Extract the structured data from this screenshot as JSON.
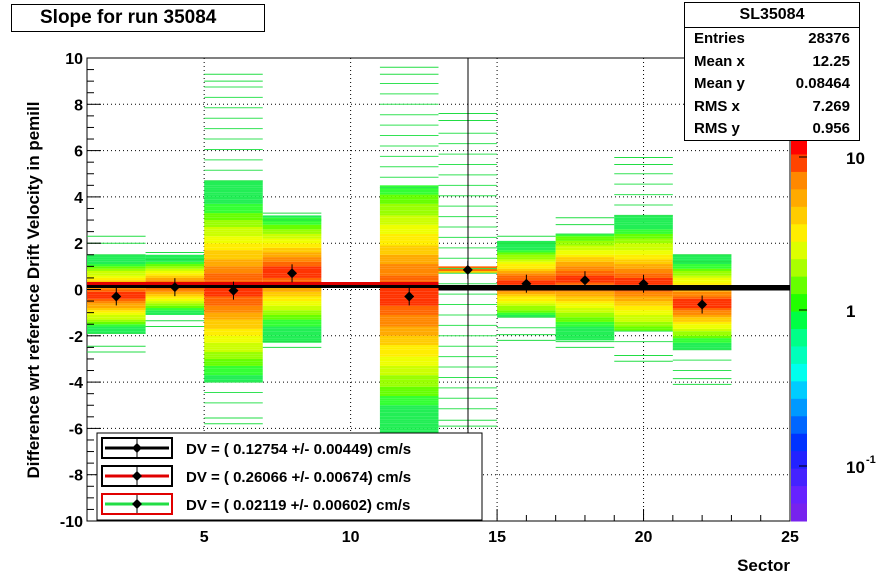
{
  "title": "Slope for run 35084",
  "stats_box": {
    "name": "SL35084",
    "rows": [
      {
        "key": "Entries",
        "value": "28376"
      },
      {
        "key": "Mean x",
        "value": "12.25"
      },
      {
        "key": "Mean y",
        "value": "0.08464"
      },
      {
        "key": "RMS x",
        "value": "7.269"
      },
      {
        "key": "RMS y",
        "value": "0.956"
      }
    ]
  },
  "chart_data": {
    "type": "heatmap",
    "xlabel": "Sector",
    "ylabel": "Difference wrt reference Drift Velocity in pemill",
    "xlim": [
      1,
      25
    ],
    "ylim": [
      -10,
      10
    ],
    "x_ticks": [
      "5",
      "10",
      "15",
      "20",
      "25"
    ],
    "y_ticks": [
      "-10",
      "-8",
      "-6",
      "-4",
      "-2",
      "0",
      "2",
      "4",
      "6",
      "8",
      "10"
    ],
    "grid": true,
    "colorbar": {
      "scale": "log",
      "labels": [
        "10",
        "1",
        "10"
      ],
      "label_exponents": [
        "",
        "",
        "-1"
      ]
    },
    "bins": [
      {
        "x": [
          1,
          3
        ],
        "core": [
          -1.9,
          1.5
        ],
        "lo": -2.7,
        "hi": 2.3
      },
      {
        "x": [
          3,
          5
        ],
        "core": [
          -1.1,
          1.5
        ],
        "lo": -1.6,
        "hi": 1.6
      },
      {
        "x": [
          5,
          7
        ],
        "core": [
          -4.0,
          4.7
        ],
        "lo": -5.8,
        "hi": 9.3
      },
      {
        "x": [
          7,
          9
        ],
        "core": [
          -2.3,
          3.2
        ],
        "lo": -2.5,
        "hi": 3.3
      },
      {
        "x": [
          11,
          13
        ],
        "core": [
          -6.5,
          4.4
        ],
        "lo": -7.6,
        "hi": 9.6
      },
      {
        "x": [
          13,
          15
        ],
        "core": [
          0.7,
          0.9
        ],
        "lo": -5.9,
        "hi": 7.6
      },
      {
        "x": [
          15,
          17
        ],
        "core": [
          -1.2,
          2.1
        ],
        "lo": -2.2,
        "hi": 2.3
      },
      {
        "x": [
          17,
          19
        ],
        "core": [
          -2.2,
          2.4
        ],
        "lo": -2.5,
        "hi": 3.1
      },
      {
        "x": [
          19,
          21
        ],
        "core": [
          -1.8,
          3.2
        ],
        "lo": -3.1,
        "hi": 5.7
      },
      {
        "x": [
          21,
          23
        ],
        "core": [
          -2.6,
          1.5
        ],
        "lo": -4.1,
        "hi": 1.5
      }
    ],
    "points": [
      {
        "x": 2,
        "y": -0.3
      },
      {
        "x": 4,
        "y": 0.1
      },
      {
        "x": 6,
        "y": -0.05
      },
      {
        "x": 8,
        "y": 0.7
      },
      {
        "x": 12,
        "y": -0.3
      },
      {
        "x": 14,
        "y": 0.85
      },
      {
        "x": 16,
        "y": 0.25
      },
      {
        "x": 18,
        "y": 0.4
      },
      {
        "x": 20,
        "y": 0.25
      },
      {
        "x": 22,
        "y": -0.65
      }
    ],
    "fits": [
      {
        "x": [
          1,
          25
        ],
        "y": 0.13,
        "color": "#000000"
      },
      {
        "x": [
          1,
          13
        ],
        "y": 0.26,
        "color": "#e00000"
      },
      {
        "x": [
          13,
          25
        ],
        "y": 0.02,
        "color": "#000000"
      }
    ],
    "legend": {
      "placement": "bottom-left",
      "entries": [
        {
          "text": "DV = (   0.12754 +/-    0.00449) cm/s",
          "box_color": "#000000"
        },
        {
          "text": "DV = (   0.26066 +/-    0.00674) cm/s",
          "box_color": "#000000"
        },
        {
          "text": "DV = (   0.02119 +/-    0.00602) cm/s",
          "box_color": "#e00000"
        }
      ]
    }
  }
}
